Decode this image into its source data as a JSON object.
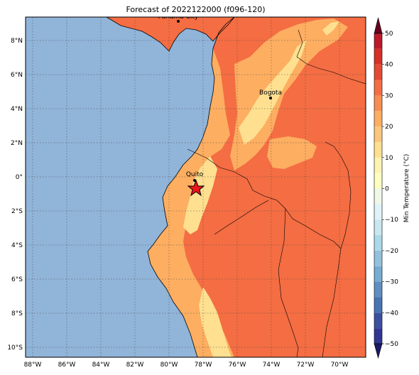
{
  "title": "Forecast of 2022122000 (f096-120)",
  "colorbar": {
    "label": "Min Temperature (°C)",
    "ticks": [
      -50,
      -40,
      -30,
      -20,
      -10,
      0,
      10,
      20,
      30,
      40,
      50
    ],
    "tick_labels": [
      "−50",
      "−40",
      "−30",
      "−20",
      "−10",
      "0",
      "10",
      "20",
      "30",
      "40",
      "50"
    ],
    "levels": [
      -50,
      -45,
      -40,
      -35,
      -30,
      -25,
      -20,
      -15,
      -10,
      -5,
      0,
      5,
      10,
      15,
      20,
      25,
      30,
      35,
      40,
      45,
      50
    ],
    "colors": [
      "#313695",
      "#3b50a0",
      "#4575b4",
      "#5f8fc2",
      "#74add1",
      "#92c1dd",
      "#abd9e9",
      "#c9e7f0",
      "#e0f3f8",
      "#f0f9e8",
      "#ffffbf",
      "#fff3b2",
      "#fee090",
      "#fdc67c",
      "#fdae61",
      "#f88d52",
      "#f46d43",
      "#e34a33",
      "#d73027",
      "#bc1a2a",
      "#a50026"
    ]
  },
  "map": {
    "ocean_color": "#91b4d9",
    "lon_labels": [
      "88°W",
      "86°W",
      "84°W",
      "82°W",
      "80°W",
      "78°W",
      "76°W",
      "74°W",
      "72°W",
      "70°W"
    ],
    "lat_labels": [
      "8°N",
      "6°N",
      "4°N",
      "2°N",
      "0°",
      "2°S",
      "4°S",
      "6°S",
      "8°S",
      "10°S"
    ],
    "fill_colors": {
      "t10_15": "#fee090",
      "t15_20": "#fdae61",
      "t20_25": "#f46d43"
    },
    "cities": [
      {
        "name": "Panama City"
      },
      {
        "name": "Bogota"
      },
      {
        "name": "Quito"
      }
    ],
    "marker": "red-star"
  }
}
